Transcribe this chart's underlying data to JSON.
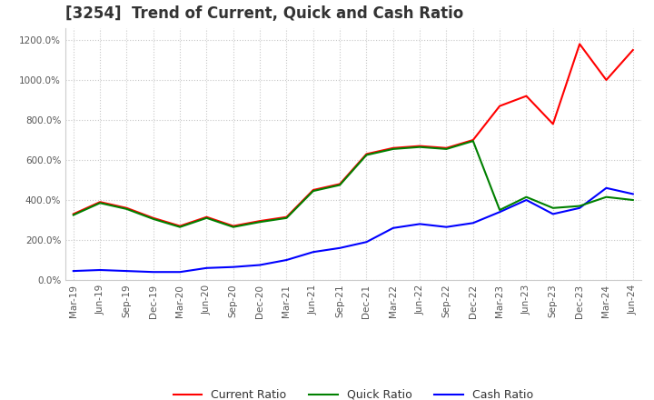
{
  "title": "[3254]  Trend of Current, Quick and Cash Ratio",
  "dates": [
    "Mar-19",
    "Jun-19",
    "Sep-19",
    "Dec-19",
    "Mar-20",
    "Jun-20",
    "Sep-20",
    "Dec-20",
    "Mar-21",
    "Jun-21",
    "Sep-21",
    "Dec-21",
    "Mar-22",
    "Jun-22",
    "Sep-22",
    "Dec-22",
    "Mar-23",
    "Jun-23",
    "Sep-23",
    "Dec-23",
    "Mar-24",
    "Jun-24"
  ],
  "current_ratio": [
    330,
    390,
    360,
    310,
    270,
    315,
    270,
    295,
    315,
    450,
    480,
    630,
    660,
    670,
    660,
    700,
    870,
    920,
    780,
    1180,
    1000,
    1150
  ],
  "quick_ratio": [
    325,
    385,
    355,
    305,
    265,
    310,
    265,
    290,
    310,
    445,
    475,
    625,
    655,
    665,
    655,
    695,
    350,
    415,
    360,
    370,
    415,
    400
  ],
  "cash_ratio": [
    45,
    50,
    45,
    40,
    40,
    60,
    65,
    75,
    100,
    140,
    160,
    190,
    260,
    280,
    265,
    285,
    340,
    400,
    330,
    360,
    460,
    430
  ],
  "current_color": "#FF0000",
  "quick_color": "#008000",
  "cash_color": "#0000FF",
  "background_color": "#FFFFFF",
  "grid_color": "#C8C8C8",
  "ylim": [
    0,
    1260
  ],
  "yticks": [
    0,
    200,
    400,
    600,
    800,
    1000,
    1200
  ],
  "title_fontsize": 12,
  "tick_fontsize": 7.5,
  "legend_fontsize": 9
}
